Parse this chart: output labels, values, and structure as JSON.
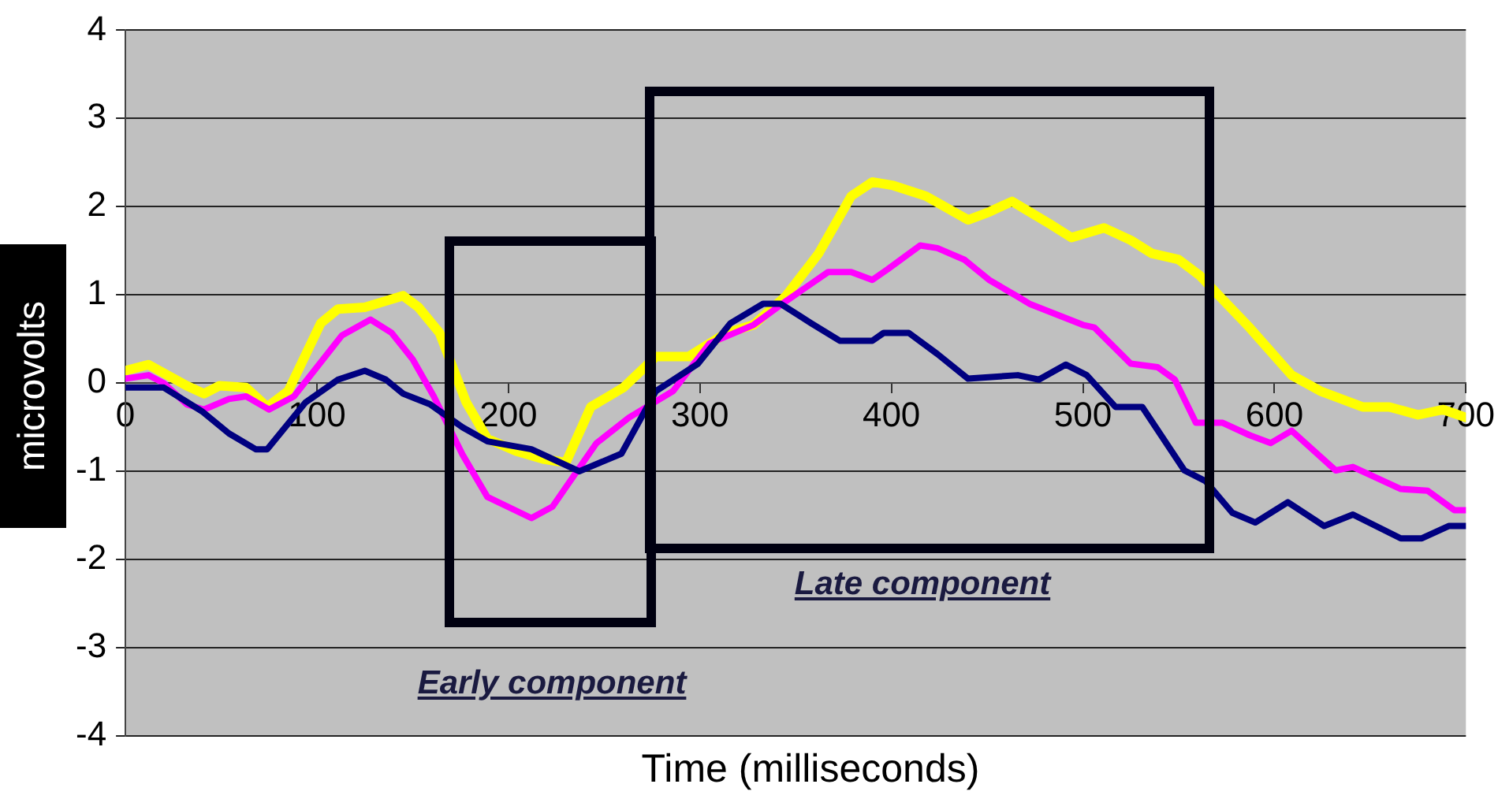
{
  "chart_data": {
    "type": "line",
    "xlabel": "Time (milliseconds)",
    "ylabel": "microvolts",
    "xlim": [
      0,
      700
    ],
    "xticks": [
      0,
      100,
      200,
      300,
      400,
      500,
      600,
      700
    ],
    "ylim": [
      -4,
      4
    ],
    "yticks": [
      -4,
      -3,
      -2,
      -1,
      0,
      1,
      2,
      3,
      4
    ],
    "grid": "y",
    "legend": false,
    "marker": "none",
    "line_style": "solid",
    "annotations": [
      "Early component",
      "Late component"
    ],
    "series": [
      {
        "color": "#000080",
        "x": [
          0,
          20,
          40,
          54,
          68,
          74,
          94,
          111,
          125,
          136,
          145,
          159,
          176,
          189,
          212,
          237,
          259,
          277,
          299,
          316,
          333,
          342,
          358,
          373,
          390,
          396,
          409,
          424,
          440,
          466,
          477,
          491,
          502,
          517,
          531,
          553,
          564,
          578,
          590,
          607,
          626,
          641,
          666,
          677,
          691,
          700
        ],
        "values": [
          -0.05,
          -0.05,
          -0.32,
          -0.57,
          -0.75,
          -0.75,
          -0.22,
          0.04,
          0.14,
          0.04,
          -0.12,
          -0.24,
          -0.5,
          -0.66,
          -0.75,
          -1.0,
          -0.8,
          -0.09,
          0.22,
          0.68,
          0.9,
          0.9,
          0.68,
          0.48,
          0.48,
          0.57,
          0.57,
          0.33,
          0.05,
          0.09,
          0.04,
          0.21,
          0.09,
          -0.27,
          -0.27,
          -0.99,
          -1.11,
          -1.47,
          -1.58,
          -1.35,
          -1.62,
          -1.49,
          -1.76,
          -1.76,
          -1.62,
          -1.62
        ]
      },
      {
        "color": "#ff00ff",
        "x": [
          0,
          12,
          20,
          32,
          41,
          54,
          63,
          75,
          88,
          113,
          128,
          139,
          150,
          161,
          176,
          189,
          212,
          223,
          238,
          246,
          263,
          286,
          305,
          328,
          345,
          367,
          379,
          390,
          398,
          415,
          424,
          438,
          451,
          466,
          472,
          500,
          506,
          525,
          539,
          548,
          559,
          573,
          587,
          598,
          609,
          632,
          641,
          666,
          680,
          694,
          700
        ],
        "values": [
          0.05,
          0.09,
          0,
          -0.24,
          -0.3,
          -0.18,
          -0.15,
          -0.3,
          -0.15,
          0.54,
          0.72,
          0.57,
          0.27,
          -0.15,
          -0.81,
          -1.29,
          -1.53,
          -1.4,
          -0.93,
          -0.68,
          -0.39,
          -0.09,
          0.45,
          0.66,
          0.93,
          1.26,
          1.26,
          1.17,
          1.29,
          1.56,
          1.53,
          1.4,
          1.17,
          0.98,
          0.9,
          0.66,
          0.63,
          0.22,
          0.18,
          0.04,
          -0.45,
          -0.45,
          -0.59,
          -0.68,
          -0.54,
          -0.99,
          -0.95,
          -1.2,
          -1.22,
          -1.44,
          -1.44
        ]
      },
      {
        "color": "#ffff00",
        "x": [
          0,
          12,
          32,
          41,
          49,
          63,
          74,
          85,
          102,
          111,
          125,
          145,
          153,
          164,
          178,
          189,
          204,
          218,
          230,
          243,
          260,
          277,
          294,
          314,
          328,
          345,
          362,
          379,
          390,
          401,
          418,
          440,
          451,
          463,
          483,
          494,
          511,
          525,
          536,
          550,
          561,
          587,
          609,
          624,
          646,
          660,
          675,
          688,
          700
        ],
        "values": [
          0.14,
          0.21,
          -0.03,
          -0.12,
          -0.03,
          -0.05,
          -0.27,
          -0.09,
          0.68,
          0.84,
          0.86,
          0.99,
          0.86,
          0.57,
          -0.22,
          -0.63,
          -0.77,
          -0.86,
          -0.9,
          -0.27,
          -0.05,
          0.3,
          0.3,
          0.57,
          0.66,
          0.99,
          1.47,
          2.12,
          2.28,
          2.24,
          2.12,
          1.85,
          1.94,
          2.06,
          1.8,
          1.65,
          1.76,
          1.62,
          1.47,
          1.4,
          1.22,
          0.63,
          0.09,
          -0.09,
          -0.27,
          -0.27,
          -0.36,
          -0.3,
          -0.39
        ]
      }
    ]
  }
}
